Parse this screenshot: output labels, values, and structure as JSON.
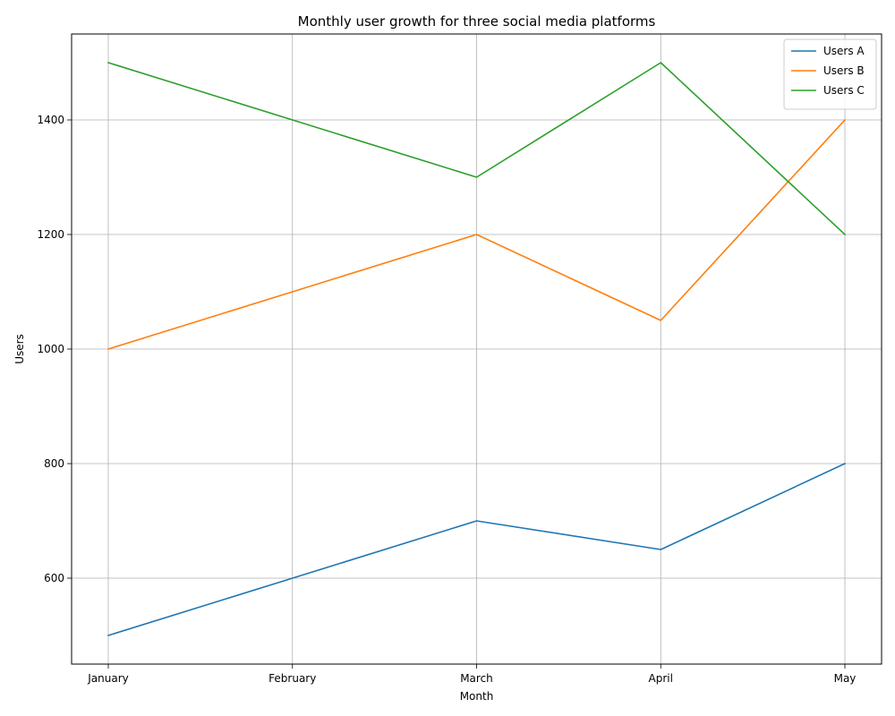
{
  "chart_data": {
    "type": "line",
    "title": "Monthly user growth for three social media platforms",
    "xlabel": "Month",
    "ylabel": "Users",
    "categories": [
      "January",
      "February",
      "March",
      "April",
      "May"
    ],
    "series": [
      {
        "name": "Users A",
        "color": "#1f77b4",
        "values": [
          500,
          600,
          700,
          650,
          800
        ]
      },
      {
        "name": "Users B",
        "color": "#ff7f0e",
        "values": [
          1000,
          1100,
          1200,
          1050,
          1400
        ]
      },
      {
        "name": "Users C",
        "color": "#2ca02c",
        "values": [
          1500,
          1400,
          1300,
          1500,
          1200
        ]
      }
    ],
    "ylim": [
      450,
      1550
    ],
    "yticks": [
      600,
      800,
      1000,
      1200,
      1400
    ],
    "grid": true,
    "legend_position": "top-right"
  }
}
